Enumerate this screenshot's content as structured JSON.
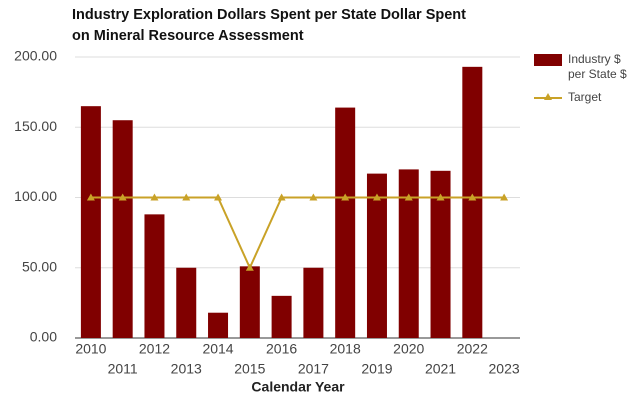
{
  "chart_data": {
    "type": "bar",
    "title": [
      "Industry Exploration Dollars Spent per State Dollar Spent",
      "on Mineral Resource Assessment"
    ],
    "x_label": "Calendar Year",
    "categories": [
      "2010",
      "2011",
      "2012",
      "2013",
      "2014",
      "2015",
      "2016",
      "2017",
      "2018",
      "2019",
      "2020",
      "2021",
      "2022",
      "2023"
    ],
    "series": [
      {
        "name": "Industry $ per State $",
        "color": "#800000",
        "type": "bar",
        "values": [
          165,
          155,
          88,
          50,
          18,
          51,
          30,
          50,
          164,
          117,
          120,
          119,
          193,
          null
        ]
      },
      {
        "name": "Target",
        "color": "#c9a227",
        "type": "line",
        "values": [
          100,
          100,
          100,
          100,
          100,
          50,
          100,
          100,
          100,
          100,
          100,
          100,
          100,
          100
        ]
      }
    ],
    "ylim": [
      0,
      200
    ],
    "yticks": [
      {
        "value": 0,
        "label": "0.00"
      },
      {
        "value": 50,
        "label": "50.00"
      },
      {
        "value": 100,
        "label": "100.00"
      },
      {
        "value": 150,
        "label": "150.00"
      },
      {
        "value": 200,
        "label": "200.00"
      }
    ],
    "grid": true,
    "legend": "right"
  }
}
